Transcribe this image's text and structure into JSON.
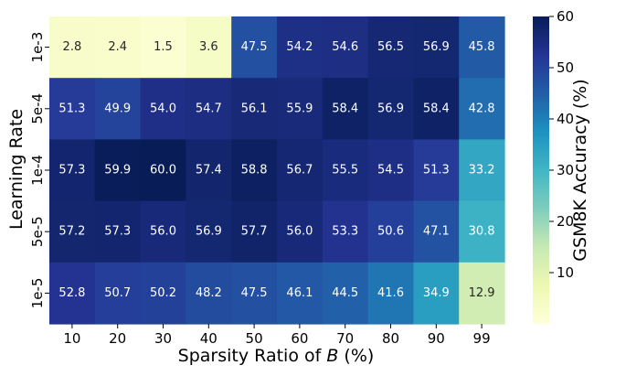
{
  "chart_data": {
    "type": "heatmap",
    "xlabel_prefix": "Sparsity Ratio of ",
    "xlabel_var": "B",
    "xlabel_suffix": " (%)",
    "ylabel": "Learning Rate",
    "colorbar_label": "GSM8K Accuracy (%)",
    "x_categories": [
      "10",
      "20",
      "30",
      "40",
      "50",
      "60",
      "70",
      "80",
      "90",
      "99"
    ],
    "y_categories": [
      "1e-3",
      "5e-4",
      "1e-4",
      "5e-5",
      "1e-5"
    ],
    "values": [
      [
        2.8,
        2.4,
        1.5,
        3.6,
        47.5,
        54.2,
        54.6,
        56.5,
        56.9,
        45.8
      ],
      [
        51.3,
        49.9,
        54.0,
        54.7,
        56.1,
        55.9,
        58.4,
        56.9,
        58.4,
        42.8
      ],
      [
        57.3,
        59.9,
        60.0,
        57.4,
        58.8,
        56.7,
        55.5,
        54.5,
        51.3,
        33.2
      ],
      [
        57.2,
        57.3,
        56.0,
        56.9,
        57.7,
        56.0,
        53.3,
        50.6,
        47.1,
        30.8
      ],
      [
        52.8,
        50.7,
        50.2,
        48.2,
        47.5,
        46.1,
        44.5,
        41.6,
        34.9,
        12.9
      ]
    ],
    "colorbar_ticks": [
      10,
      20,
      30,
      40,
      50,
      60
    ],
    "vmin": 0,
    "vmax": 60,
    "colormap": "YlGnBu"
  }
}
